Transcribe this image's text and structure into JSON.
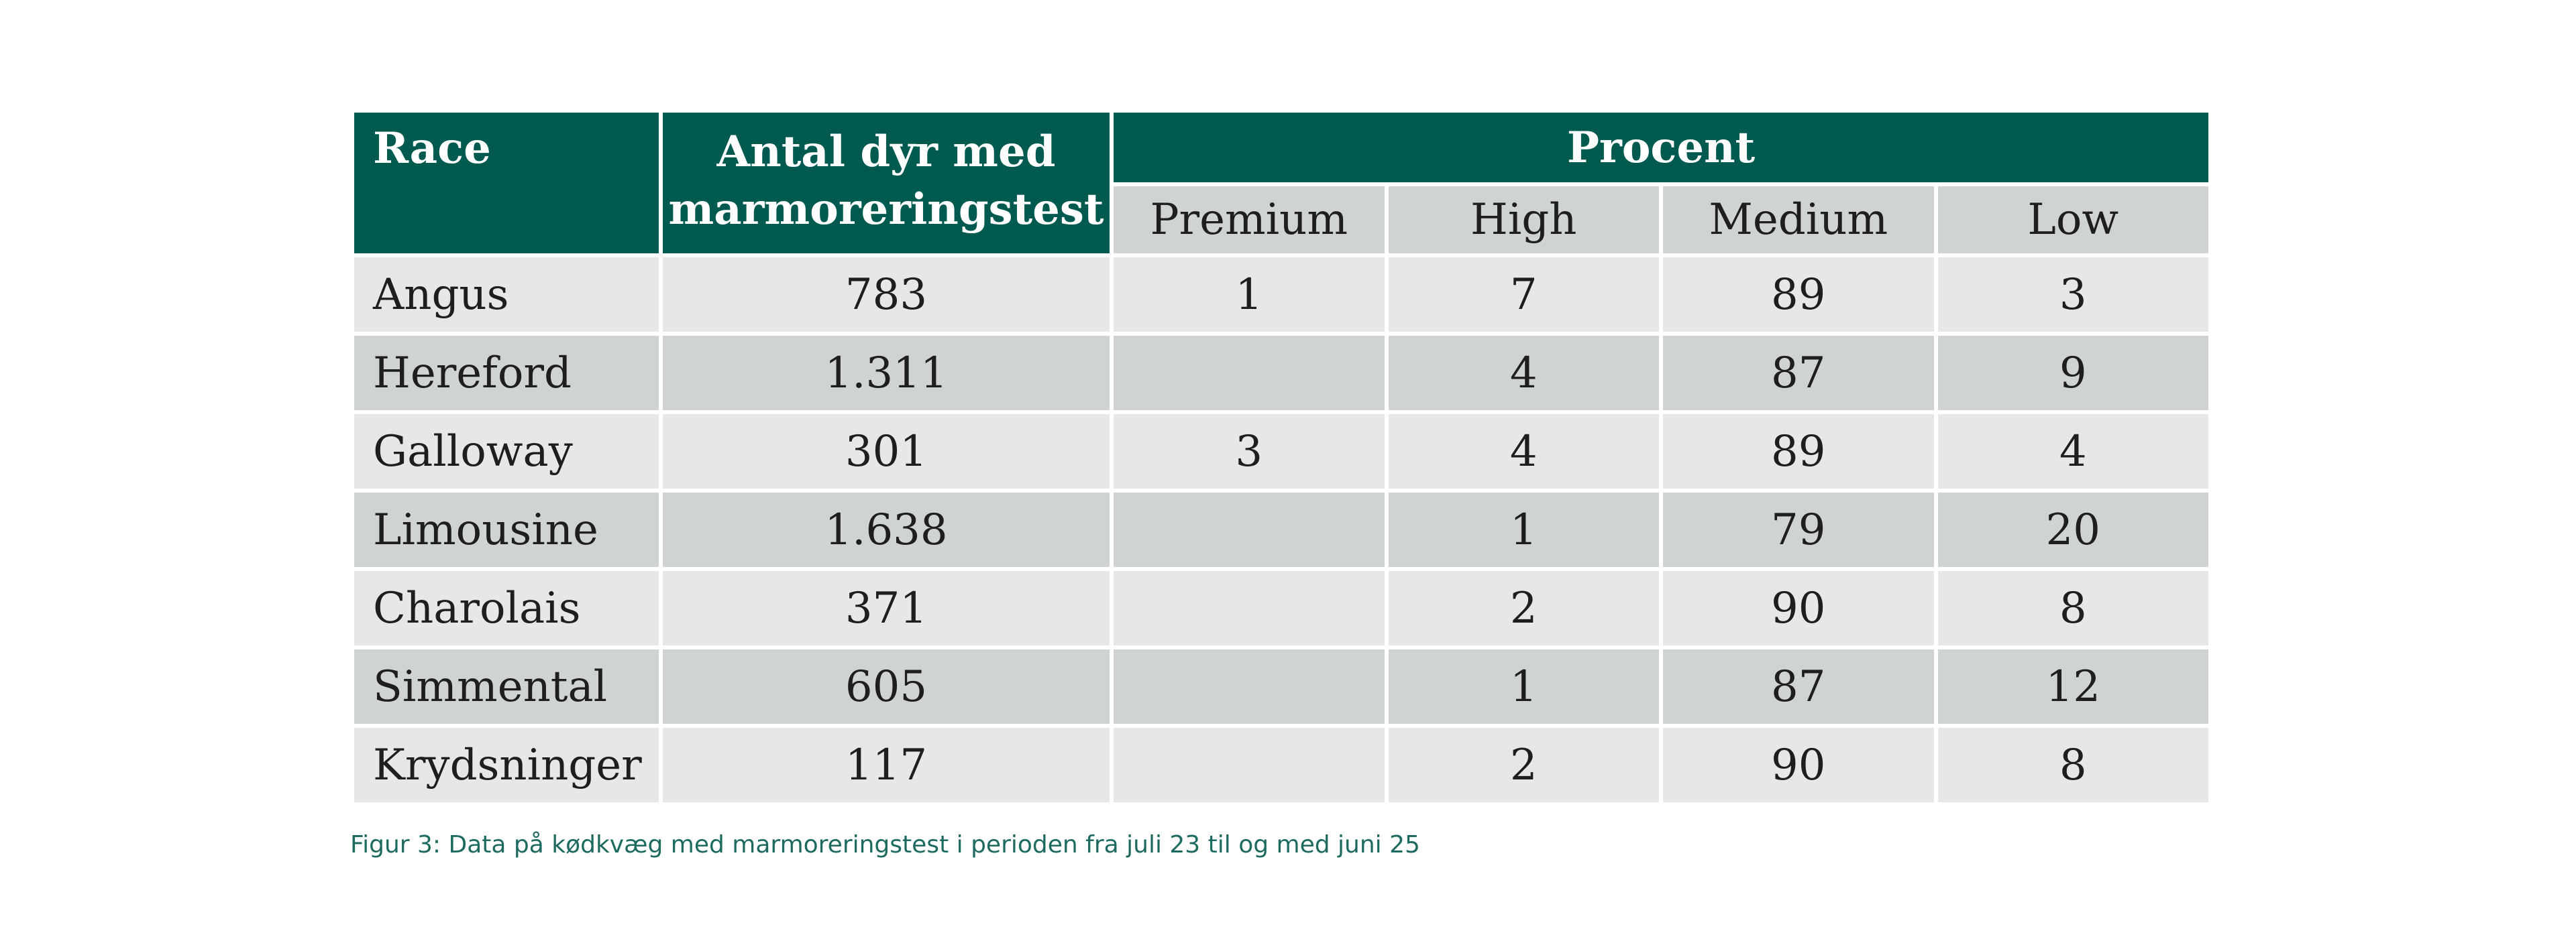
{
  "table": {
    "headers": {
      "race": "Race",
      "antal": "Antal dyr med marmoreringstest",
      "procent": "Procent",
      "sub": [
        "Premium",
        "High",
        "Medium",
        "Low"
      ]
    },
    "rows": [
      {
        "race": "Angus",
        "antal": "783",
        "premium": "1",
        "high": "7",
        "medium": "89",
        "low": "3"
      },
      {
        "race": "Hereford",
        "antal": "1.311",
        "premium": "",
        "high": "4",
        "medium": "87",
        "low": "9"
      },
      {
        "race": "Galloway",
        "antal": "301",
        "premium": "3",
        "high": "4",
        "medium": "89",
        "low": "4"
      },
      {
        "race": "Limousine",
        "antal": "1.638",
        "premium": "",
        "high": "1",
        "medium": "79",
        "low": "20"
      },
      {
        "race": "Charolais",
        "antal": "371",
        "premium": "",
        "high": "2",
        "medium": "90",
        "low": "8"
      },
      {
        "race": "Simmental",
        "antal": "605",
        "premium": "",
        "high": "1",
        "medium": "87",
        "low": "12"
      },
      {
        "race": "Krydsninger",
        "antal": "117",
        "premium": "",
        "high": "2",
        "medium": "90",
        "low": "8"
      }
    ]
  },
  "caption": "Figur 3: Data på kødkvæg med marmoreringstest i perioden fra juli 23 til og med juni 25",
  "colors": {
    "header_bg": "#005a50",
    "subheader_bg": "#cfd3d2",
    "row_light": "#e6e8e7",
    "row_dark": "#cfd3d2",
    "caption": "#1d6b60"
  }
}
